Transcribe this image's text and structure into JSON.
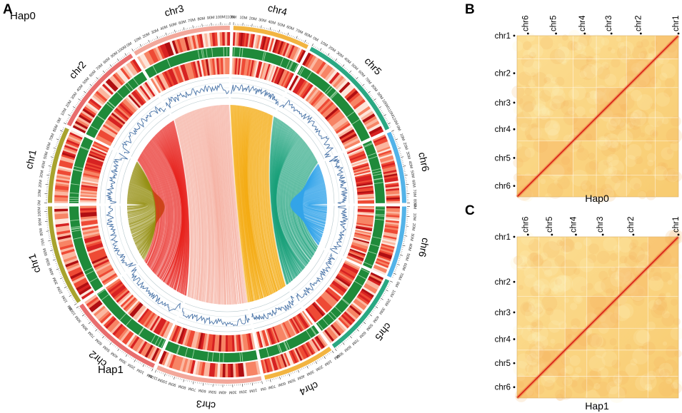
{
  "figure": {
    "panels": [
      {
        "letter": "A"
      },
      {
        "letter": "B"
      },
      {
        "letter": "C"
      }
    ]
  },
  "chart_data": [
    {
      "type": "circos",
      "panel": "A",
      "haplotypes": [
        {
          "name": "Hap0",
          "position": "top-left"
        },
        {
          "name": "Hap1",
          "position": "bottom-left"
        }
      ],
      "chromosomes": {
        "Hap0": [
          {
            "name": "chr1",
            "length_mb": 85,
            "color": "#a8a32e"
          },
          {
            "name": "chr2",
            "length_mb": 105,
            "color": "#e86d6d"
          },
          {
            "name": "chr3",
            "length_mb": 110,
            "color": "#f2a79a"
          },
          {
            "name": "chr4",
            "length_mb": 85,
            "color": "#f2b441"
          },
          {
            "name": "chr5",
            "length_mb": 125,
            "color": "#2aa882"
          },
          {
            "name": "chr6",
            "length_mb": 80,
            "color": "#53b3e8"
          }
        ],
        "Hap1": [
          {
            "name": "chr1",
            "length_mb": 105,
            "color": "#a8a32e"
          },
          {
            "name": "chr2",
            "length_mb": 100,
            "color": "#e86d6d"
          },
          {
            "name": "chr3",
            "length_mb": 110,
            "color": "#f2a79a"
          },
          {
            "name": "chr4",
            "length_mb": 75,
            "color": "#f2b441"
          },
          {
            "name": "chr5",
            "length_mb": 90,
            "color": "#2aa882"
          },
          {
            "name": "chr6",
            "length_mb": 75,
            "color": "#53b3e8"
          }
        ]
      },
      "tick_step_mb": 10,
      "tick_label_suffix": "M",
      "tracks": [
        "ideogram",
        "gene density heatmap",
        "GC content (green)",
        "repeat density heatmap",
        "line plot",
        "synteny links"
      ],
      "link_colors": {
        "chr1": "#969014",
        "chr2": "#e8231e",
        "chr3": "#f4a797",
        "chr4": "#f4aa0c",
        "chr5": "#1aa07a",
        "chr6": "#33a4ea"
      }
    },
    {
      "type": "heatmap",
      "panel": "B",
      "title": "Hap0",
      "row_labels": [
        "chr1",
        "chr2",
        "chr3",
        "chr4",
        "chr5",
        "chr6"
      ],
      "col_labels": [
        "chr6",
        "chr5",
        "chr4",
        "chr3",
        "chr2",
        "chr1"
      ],
      "relative_sizes": [
        85,
        105,
        110,
        85,
        125,
        80
      ],
      "colormap": [
        "#fff7d6",
        "#fcdc88",
        "#f7a24c",
        "#e03b1b"
      ]
    },
    {
      "type": "heatmap",
      "panel": "C",
      "title": "Hap1",
      "row_labels": [
        "chr1",
        "chr2",
        "chr3",
        "chr4",
        "chr5",
        "chr6"
      ],
      "col_labels": [
        "chr6",
        "chr5",
        "chr4",
        "chr3",
        "chr2",
        "chr1"
      ],
      "relative_sizes": [
        105,
        100,
        110,
        75,
        90,
        75
      ],
      "colormap": [
        "#fff7d6",
        "#fcdc88",
        "#f7a24c",
        "#e03b1b"
      ]
    }
  ]
}
